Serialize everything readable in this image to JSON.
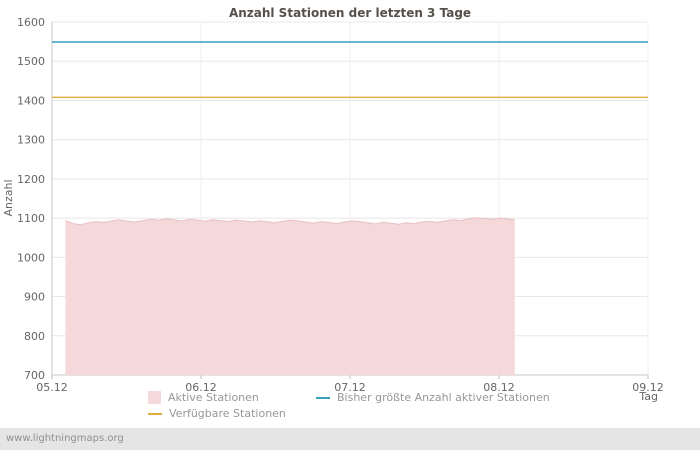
{
  "page": {
    "footer": "www.lightningmaps.org"
  },
  "chart_data": {
    "type": "area",
    "title": "Anzahl Stationen der letzten 3 Tage",
    "xlabel": "Tag",
    "ylabel": "Anzahl",
    "xlim": [
      0,
      4
    ],
    "ylim": [
      700,
      1600
    ],
    "grid": true,
    "legend_position": "bottom",
    "y_ticks": [
      700,
      800,
      900,
      1000,
      1100,
      1200,
      1300,
      1400,
      1500,
      1600
    ],
    "x_ticks": [
      {
        "pos": 0,
        "label": "05.12"
      },
      {
        "pos": 1,
        "label": "06.12"
      },
      {
        "pos": 2,
        "label": "07.12"
      },
      {
        "pos": 3,
        "label": "08.12"
      },
      {
        "pos": 4,
        "label": "09.12"
      }
    ],
    "series": [
      {
        "name": "Aktive Stationen",
        "type": "area",
        "color": "#f5d8da",
        "stroke": "#e9c0c3",
        "t_start": 0.09,
        "t_step": 0.052,
        "values": [
          1094,
          1086,
          1083,
          1088,
          1091,
          1089,
          1093,
          1096,
          1092,
          1090,
          1094,
          1097,
          1095,
          1098,
          1096,
          1093,
          1097,
          1095,
          1092,
          1096,
          1094,
          1091,
          1095,
          1093,
          1090,
          1093,
          1091,
          1088,
          1092,
          1095,
          1093,
          1090,
          1087,
          1091,
          1089,
          1086,
          1090,
          1093,
          1091,
          1088,
          1085,
          1089,
          1087,
          1084,
          1088,
          1086,
          1090,
          1092,
          1089,
          1093,
          1096,
          1094,
          1098,
          1101,
          1099,
          1097,
          1100,
          1098,
          1096
        ]
      },
      {
        "name": "Bisher größte Anzahl aktiver Stationen",
        "type": "hline",
        "color": "#399fc0",
        "value": 1549
      },
      {
        "name": "Verfügbare Stationen",
        "type": "hline",
        "color": "#e0ad3e",
        "value": 1408
      }
    ],
    "legend": [
      "Aktive Stationen",
      "Bisher größte Anzahl aktiver Stationen",
      "Verfügbare Stationen"
    ]
  }
}
